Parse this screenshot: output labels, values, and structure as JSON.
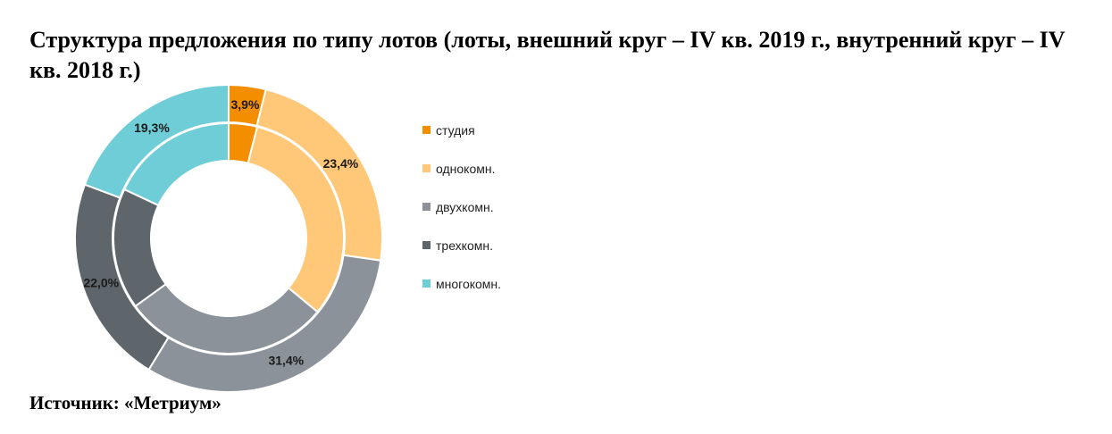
{
  "page": {
    "title": "Структура предложения по типу лотов (лоты, внешний круг – IV кв. 2019 г., внутренний круг – IV кв. 2018 г.)",
    "source": "Источник: «Метриум»"
  },
  "chart_data": {
    "type": "donut",
    "categories": [
      "студия",
      "однокомн.",
      "двухкомн.",
      "трехкомн.",
      "многокомн."
    ],
    "colors": [
      "#f28e00",
      "#ffc879",
      "#8b9299",
      "#5e666c",
      "#6fcdd8"
    ],
    "series": [
      {
        "ring": "outer",
        "period": "IV кв. 2019 г.",
        "values": [
          3.9,
          23.4,
          31.4,
          22.0,
          19.3
        ],
        "labels": [
          "3,9%",
          "23,4%",
          "31,4%",
          "22,0%",
          "19,3%"
        ]
      },
      {
        "ring": "inner",
        "period": "IV кв. 2018 г.",
        "values": [
          4.0,
          32.0,
          29.0,
          17.0,
          18.0
        ],
        "labels": []
      }
    ],
    "legend_position": "right"
  }
}
